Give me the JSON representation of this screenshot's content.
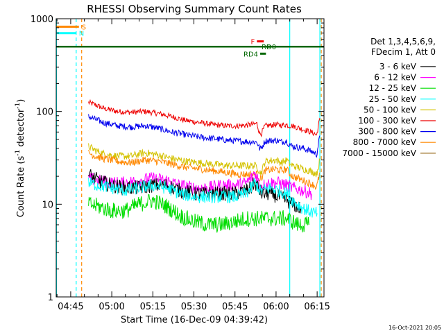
{
  "chart_data": {
    "type": "line",
    "title": "RHESSI Observing Summary Count Rates",
    "xlabel": "Start Time (16-Dec-09 04:39:42)",
    "ylabel": "Count Rate (s^-1 detector^-1)",
    "ylabel_parts": [
      "Count Rate (s",
      "-1",
      " detector",
      "-1",
      ")"
    ],
    "y_scale": "log",
    "ylim": [
      1,
      1000
    ],
    "xlim_minutes_after_0400": [
      39.7,
      137.5
    ],
    "y_tick_labels": [
      {
        "value": 1,
        "label": "1"
      },
      {
        "value": 10,
        "label": "10"
      },
      {
        "value": 100,
        "label": "100"
      },
      {
        "value": 1000,
        "label": "1000"
      }
    ],
    "x_tick_labels": [
      {
        "minute": 45,
        "label": "04:45"
      },
      {
        "minute": 60,
        "label": "05:00"
      },
      {
        "minute": 75,
        "label": "05:15"
      },
      {
        "minute": 90,
        "label": "05:30"
      },
      {
        "minute": 105,
        "label": "05:45"
      },
      {
        "minute": 120,
        "label": "06:00"
      },
      {
        "minute": 135,
        "label": "06:15"
      }
    ],
    "timestamp": "16-Oct-2021 20:05",
    "legend": {
      "placement": "right",
      "header": [
        "Det 1,3,4,5,6,9,",
        "FDecim 1, Att 0"
      ],
      "entries": [
        {
          "label": "3 - 6 keV",
          "color": "#000000"
        },
        {
          "label": "6 - 12 keV",
          "color": "#ff00ff"
        },
        {
          "label": "12 - 25 keV",
          "color": "#00dd00"
        },
        {
          "label": "25 - 50 keV",
          "color": "#00ffff"
        },
        {
          "label": "50 - 100 keV",
          "color": "#d4c200"
        },
        {
          "label": "100 - 300 keV",
          "color": "#ee0000"
        },
        {
          "label": "300 - 800 keV",
          "color": "#0000ee"
        },
        {
          "label": "800 - 7000 keV",
          "color": "#ff8800"
        },
        {
          "label": "7000 - 15000 keV",
          "color": "#8b5a00"
        }
      ]
    },
    "flags": [
      {
        "label": "S",
        "color": "#ff8800",
        "start": 39.7,
        "end": 48.0,
        "level": 820
      },
      {
        "label": "N",
        "color": "#00ffff",
        "start": 39.7,
        "end": 47.0,
        "level": 700
      },
      {
        "label": "F",
        "color": "#ee0000",
        "start": 113.0,
        "end": 115.5,
        "level": 570
      },
      {
        "label": "RD0",
        "color": "#006600",
        "start": 116.5,
        "end": 118.2,
        "level": 500
      },
      {
        "label": "RD4",
        "color": "#006600",
        "start": 114.2,
        "end": 116.3,
        "level": 420
      }
    ],
    "markers": [
      {
        "color": "#00ffff",
        "style": "solid",
        "minute": 39.8
      },
      {
        "color": "#00ffff",
        "style": "dashed",
        "minute": 47.0
      },
      {
        "color": "#ff8800",
        "style": "dashed",
        "minute": 49.0
      },
      {
        "color": "#00ffff",
        "style": "solid",
        "minute": 125.0
      },
      {
        "color": "#ff8800",
        "style": "dashed",
        "minute": 136.5
      },
      {
        "color": "#00ffff",
        "style": "solid",
        "minute": 136.0
      }
    ],
    "attenuator_line": {
      "color": "#006600",
      "level": 500,
      "start": 39.7,
      "end": 137.5
    },
    "series": [
      {
        "name": "100 - 300 keV",
        "color": "#ee0000",
        "noise": 0.03,
        "x": [
          51.5,
          54,
          57,
          62,
          67,
          72,
          77,
          82,
          87,
          92,
          97,
          102,
          106,
          111,
          113,
          114,
          114.6,
          116,
          120,
          122,
          124,
          124.5,
          126,
          130,
          134,
          134.8,
          136
        ],
        "y": [
          125,
          118,
          108,
          100,
          98,
          100,
          95,
          88,
          80,
          76,
          72,
          70,
          70,
          72,
          74,
          58,
          58,
          70,
          72,
          71,
          72,
          70,
          70,
          64,
          58,
          55,
          85
        ]
      },
      {
        "name": "300 - 800 keV",
        "color": "#0000ee",
        "noise": 0.035,
        "x": [
          51.5,
          54,
          57,
          62,
          67,
          72,
          77,
          82,
          87,
          92,
          97,
          102,
          106,
          111,
          113,
          114,
          114.6,
          116,
          120,
          122,
          124,
          124.5,
          126,
          130,
          134,
          134.8,
          136
        ],
        "y": [
          88,
          82,
          76,
          70,
          68,
          70,
          66,
          60,
          56,
          53,
          51,
          49,
          48,
          47,
          47,
          40,
          40,
          48,
          49,
          47,
          48,
          45,
          42,
          40,
          36,
          34,
          55
        ]
      },
      {
        "name": "50 - 100 keV",
        "color": "#d4c200",
        "noise": 0.04,
        "x": [
          51.5,
          54,
          57,
          62,
          67,
          72,
          77,
          82,
          87,
          92,
          97,
          102,
          106,
          111,
          113,
          114,
          114.6,
          116,
          120,
          122,
          124,
          124.5,
          126,
          130,
          134,
          134.8,
          136
        ],
        "y": [
          42,
          38,
          35,
          33,
          33,
          36,
          34,
          31,
          29,
          28,
          27,
          26,
          26,
          26,
          26,
          22,
          22,
          29,
          30,
          28,
          30,
          28,
          26,
          24,
          22,
          21,
          30
        ]
      },
      {
        "name": "800 - 7000 keV",
        "color": "#ff8800",
        "noise": 0.04,
        "x": [
          51.5,
          54,
          57,
          62,
          67,
          72,
          77,
          82,
          87,
          92,
          97,
          102,
          106,
          111,
          113,
          114,
          114.6,
          116,
          120,
          122,
          124,
          124.5,
          126,
          130,
          134,
          134.8,
          136
        ],
        "y": [
          36,
          33,
          31,
          29,
          28,
          30,
          29,
          27,
          25,
          24,
          23,
          22,
          21,
          21,
          21,
          19,
          19,
          23,
          24,
          23,
          24,
          22,
          20,
          18,
          16,
          15,
          22
        ]
      },
      {
        "name": "6 - 12 keV",
        "color": "#ff00ff",
        "noise": 0.07,
        "x": [
          51.5,
          55,
          60,
          65,
          70,
          75,
          80,
          85,
          90,
          95,
          100,
          105,
          109,
          111,
          112,
          113,
          114,
          115,
          118,
          121,
          124,
          126,
          130,
          133
        ],
        "y": [
          19,
          18,
          17,
          17,
          18,
          19,
          18,
          16,
          15,
          15,
          16,
          16,
          17,
          19,
          22,
          20,
          16,
          16,
          17,
          17,
          16,
          15,
          14,
          13
        ]
      },
      {
        "name": "3 - 6 keV",
        "color": "#000000",
        "noise": 0.08,
        "x": [
          51.5,
          55,
          60,
          65,
          70,
          75,
          80,
          85,
          90,
          95,
          100,
          105,
          109,
          111,
          112,
          113,
          114,
          115,
          118,
          121,
          124,
          126,
          129
        ],
        "y": [
          21,
          18,
          16,
          15,
          15,
          16,
          16,
          14,
          13,
          13,
          13,
          13,
          14,
          15,
          17,
          16,
          14,
          13,
          13,
          12,
          11,
          10,
          9
        ]
      },
      {
        "name": "25 - 50 keV",
        "color": "#00ffff",
        "noise": 0.07,
        "x": [
          51.5,
          55,
          60,
          65,
          70,
          75,
          80,
          85,
          90,
          95,
          100,
          105,
          109,
          111,
          112,
          113,
          114,
          115,
          118,
          121,
          124,
          126,
          130,
          134,
          135
        ],
        "y": [
          17,
          16,
          15,
          14,
          15,
          16,
          15,
          13,
          12,
          12,
          12,
          12,
          13,
          15,
          17,
          16,
          14,
          14,
          15,
          14,
          13,
          11,
          9,
          8,
          8
        ]
      },
      {
        "name": "12 - 25 keV",
        "color": "#00dd00",
        "noise": 0.09,
        "x": [
          51.5,
          55,
          60,
          65,
          70,
          75,
          80,
          85,
          90,
          95,
          100,
          105,
          109,
          111,
          113,
          115,
          118,
          121,
          124,
          126,
          128,
          130,
          132
        ],
        "y": [
          10,
          9.5,
          8.5,
          8.5,
          10,
          11,
          9.5,
          7.5,
          6.5,
          6,
          6,
          6.5,
          7,
          7,
          7,
          7,
          7,
          7,
          7,
          6.5,
          6,
          6,
          6
        ]
      },
      {
        "name": "7000 - 15000 keV",
        "color": "#8b5a00",
        "noise": 0,
        "x": [],
        "y": []
      }
    ]
  }
}
